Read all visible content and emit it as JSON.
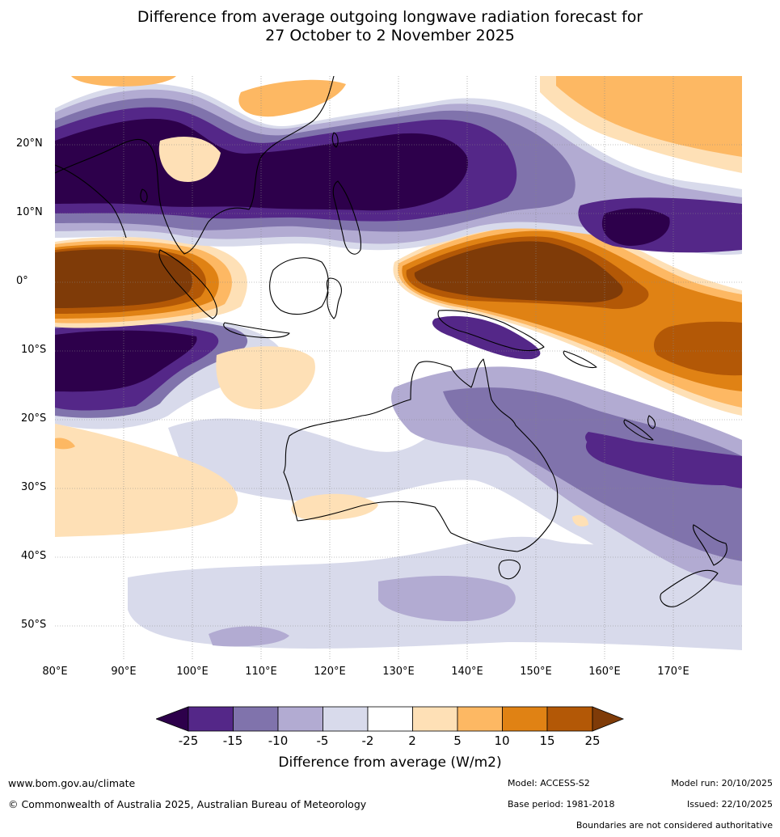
{
  "title": {
    "line1": "Difference from average outgoing longwave radiation forecast for",
    "line2": "27 October to 2 November 2025"
  },
  "axes": {
    "lat_labels": [
      "20°N",
      "10°N",
      "0°",
      "10°S",
      "20°S",
      "30°S",
      "40°S",
      "50°S"
    ],
    "lon_labels": [
      "80°E",
      "90°E",
      "100°E",
      "110°E",
      "120°E",
      "130°E",
      "140°E",
      "150°E",
      "160°E",
      "170°E"
    ],
    "lon_range_deg": [
      80,
      180
    ],
    "lat_range_deg": [
      -55,
      30
    ]
  },
  "colorbar": {
    "title": "Difference from average (W/m2)",
    "ticks": [
      "-25",
      "-15",
      "-10",
      "-5",
      "-2",
      "2",
      "5",
      "10",
      "15",
      "25"
    ],
    "colors": [
      "#2d004b",
      "#542788",
      "#8073ac",
      "#b2abd2",
      "#d8daeb",
      "#ffffff",
      "#fee0b6",
      "#fdb863",
      "#e08214",
      "#b35806",
      "#7f3b08"
    ]
  },
  "footer": {
    "website": "www.bom.gov.au/climate",
    "copyright": "© Commonwealth of Australia 2025, Australian Bureau of Meteorology",
    "model": "Model: ACCESS-S2",
    "base_period": "Base period: 1981-2018",
    "model_run": "Model run: 20/10/2025",
    "issued": "Issued: 22/10/2025",
    "disclaimer": "Boundaries are not considered authoritative"
  }
}
